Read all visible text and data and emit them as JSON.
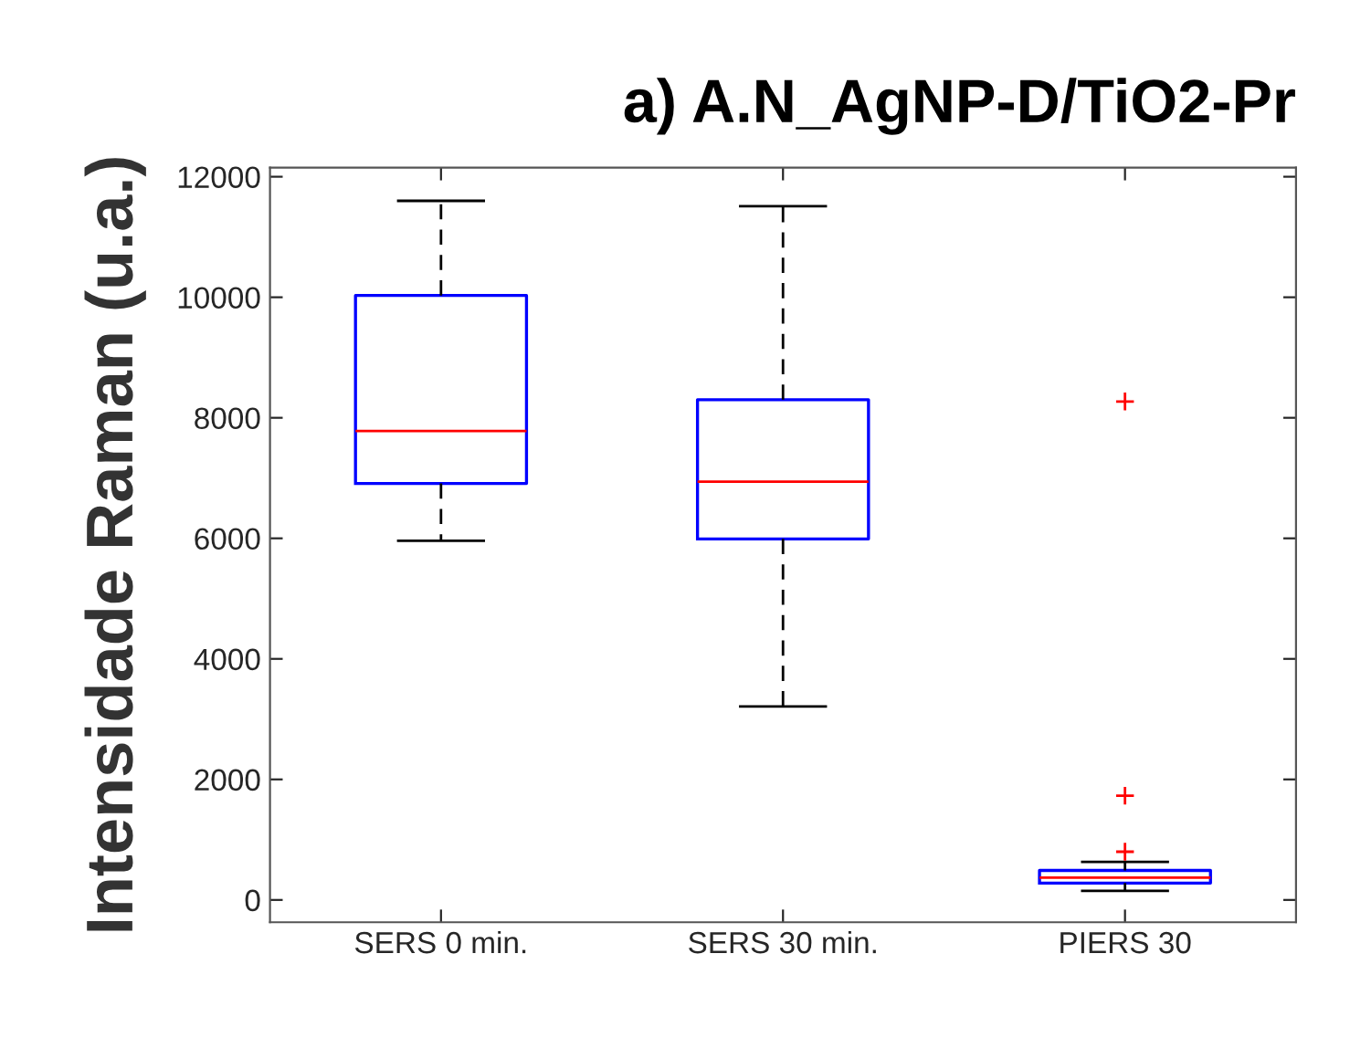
{
  "chart_data": {
    "type": "box",
    "title": "a) A.N_AgNP-D/TiO2-Pr",
    "ylabel": "Intensidade Raman (u.a.)",
    "categories": [
      "SERS 0 min.",
      "SERS 30 min.",
      "PIERS 30"
    ],
    "boxes": [
      {
        "low": 5960,
        "q1": 6910,
        "median": 7780,
        "q3": 10030,
        "high": 11600
      },
      {
        "low": 3210,
        "q1": 5990,
        "median": 6940,
        "q3": 8300,
        "high": 11510
      },
      {
        "low": 150,
        "q1": 280,
        "median": 370,
        "q3": 490,
        "high": 630,
        "outliers": [
          800,
          1730,
          8270
        ]
      }
    ],
    "color": "#0000ff",
    "marker": "cross",
    "line_style": "dashed",
    "ylim": [
      -370,
      12150
    ],
    "yticks": [
      0,
      2000,
      4000,
      6000,
      8000,
      10000,
      12000
    ],
    "grid": false,
    "legend": false
  }
}
